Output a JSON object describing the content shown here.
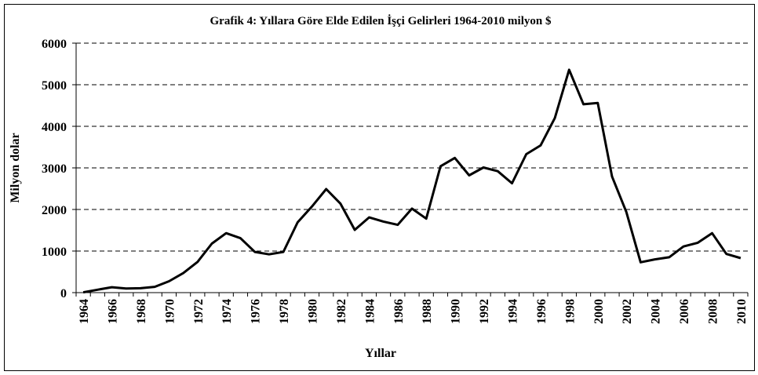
{
  "chart_data": {
    "type": "line",
    "title": "Grafik 4: Yıllara Göre Elde Edilen İşçi Gelirleri 1964-2010 milyon $",
    "x_label": "Yıllar",
    "y_label": "Milyon dolar",
    "categories": [
      "1964",
      null,
      "1966",
      null,
      "1968",
      null,
      "1970",
      null,
      "1972",
      null,
      "1974",
      null,
      "1976",
      null,
      "1978",
      null,
      "1980",
      null,
      "1982",
      null,
      "1984",
      null,
      "1986",
      null,
      "1988",
      null,
      "1990",
      null,
      "1992",
      null,
      "1994",
      null,
      "1996",
      null,
      "1998",
      null,
      "2000",
      null,
      "2002",
      null,
      "2004",
      null,
      "2006",
      null,
      "2008",
      null,
      "2010"
    ],
    "series": [
      {
        "name": "İşçi Gelirleri",
        "color": "#000000",
        "values": [
          8,
          70,
          130,
          100,
          105,
          140,
          273,
          470,
          740,
          1180,
          1430,
          1310,
          980,
          920,
          980,
          1690,
          2070,
          2490,
          2140,
          1510,
          1810,
          1710,
          1630,
          2020,
          1780,
          3040,
          3240,
          2820,
          3010,
          2920,
          2630,
          3330,
          3540,
          4200,
          5360,
          4530,
          4560,
          2790,
          1940,
          730,
          800,
          850,
          1110,
          1200,
          1430,
          930,
          830
        ]
      }
    ],
    "ylim": [
      0,
      6000
    ],
    "yticks": [
      0,
      1000,
      2000,
      3000,
      4000,
      5000,
      6000
    ],
    "grid": true
  }
}
